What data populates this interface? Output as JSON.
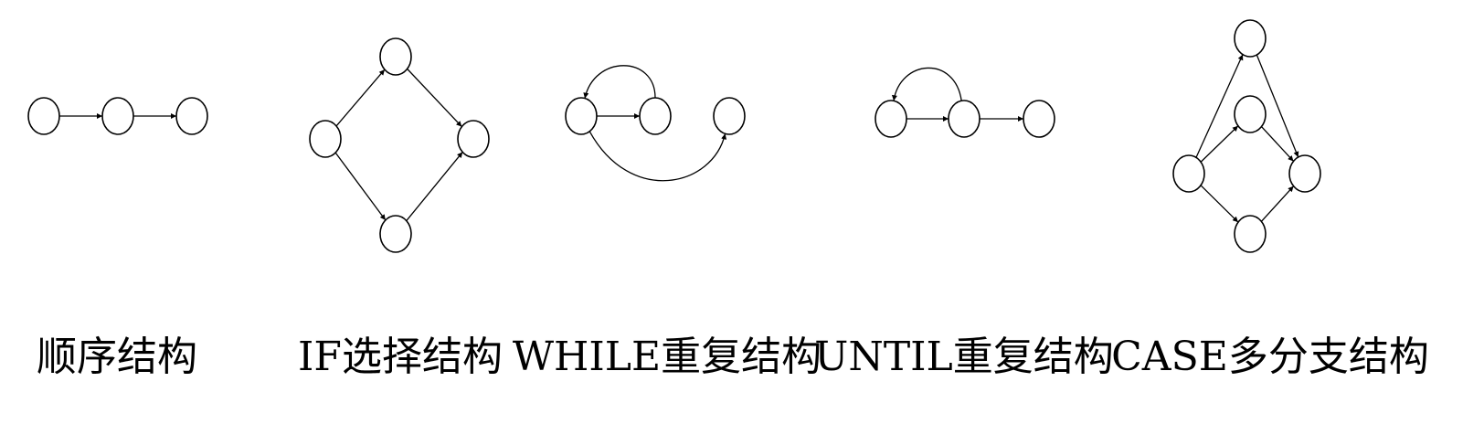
{
  "diagrams": [
    {
      "label": "顺序结构",
      "nodes": [
        {
          "id": "a"
        },
        {
          "id": "b"
        },
        {
          "id": "c"
        }
      ],
      "edges": [
        {
          "from": "a",
          "to": "b"
        },
        {
          "from": "b",
          "to": "c"
        }
      ]
    },
    {
      "label": "IF选择结构",
      "nodes": [
        {
          "id": "s"
        },
        {
          "id": "t"
        },
        {
          "id": "m"
        },
        {
          "id": "e"
        }
      ],
      "edges": [
        {
          "from": "s",
          "to": "t"
        },
        {
          "from": "s",
          "to": "m"
        },
        {
          "from": "t",
          "to": "e"
        },
        {
          "from": "m",
          "to": "e"
        }
      ]
    },
    {
      "label": "WHILE重复结构",
      "nodes": [
        {
          "id": "a"
        },
        {
          "id": "b"
        },
        {
          "id": "c"
        }
      ],
      "edges": [
        {
          "from": "a",
          "to": "b"
        },
        {
          "from": "b",
          "to": "a",
          "curved": true
        },
        {
          "from": "a",
          "to": "c",
          "curved": true
        }
      ]
    },
    {
      "label": "UNTIL重复结构",
      "nodes": [
        {
          "id": "a"
        },
        {
          "id": "b"
        },
        {
          "id": "c"
        }
      ],
      "edges": [
        {
          "from": "a",
          "to": "b"
        },
        {
          "from": "b",
          "to": "a",
          "curved": true
        },
        {
          "from": "b",
          "to": "c"
        }
      ]
    },
    {
      "label": "CASE多分支结构",
      "nodes": [
        {
          "id": "s"
        },
        {
          "id": "t"
        },
        {
          "id": "m"
        },
        {
          "id": "bo"
        },
        {
          "id": "e"
        }
      ],
      "edges": [
        {
          "from": "s",
          "to": "t"
        },
        {
          "from": "s",
          "to": "m"
        },
        {
          "from": "s",
          "to": "bo"
        },
        {
          "from": "t",
          "to": "e"
        },
        {
          "from": "m",
          "to": "e"
        },
        {
          "from": "bo",
          "to": "e"
        }
      ]
    }
  ]
}
